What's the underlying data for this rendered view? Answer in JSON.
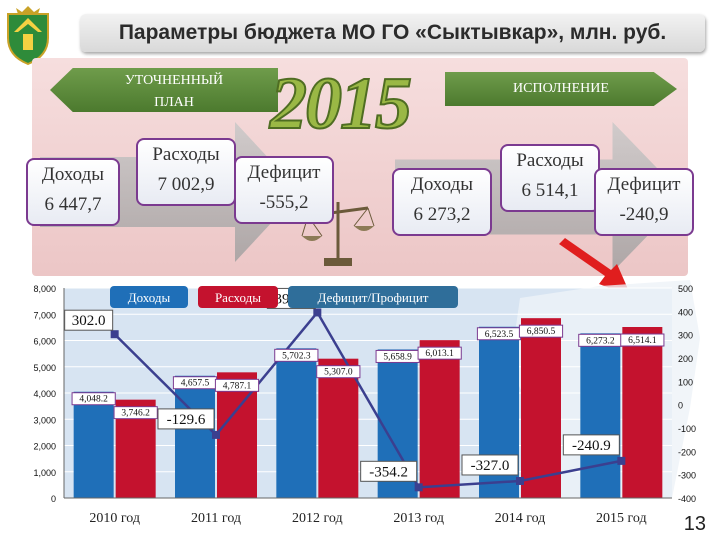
{
  "title": "Параметры бюджета МО ГО «Сыктывкар», млн. руб.",
  "bands": {
    "plan": [
      "УТОЧНЕННЫЙ",
      "ПЛАН"
    ],
    "execution": "ИСПОЛНЕНИЕ",
    "year": "2015"
  },
  "boxes": {
    "plan_income_label": "Доходы",
    "plan_income_value": "6 447,7",
    "plan_expense_label": "Расходы",
    "plan_expense_value": "7 002,9",
    "plan_deficit_label": "Дефицит",
    "plan_deficit_value": "-555,2",
    "exec_income_label": "Доходы",
    "exec_income_value": "6 273,2",
    "exec_expense_label": "Расходы",
    "exec_expense_value": "6 514,1",
    "exec_deficit_label": "Дефицит",
    "exec_deficit_value": "-240,9"
  },
  "page_number": "13",
  "colors": {
    "income": "#1f6fb8",
    "expense": "#c4122e",
    "balance_line": "#3b3f8f",
    "band": "#5a8a36",
    "box_border": "#7b3a90"
  },
  "chart_data": {
    "type": "bar",
    "categories": [
      "2010 год",
      "2011 год",
      "2012 год",
      "2013 год",
      "2014 год",
      "2015 год"
    ],
    "series": [
      {
        "name": "Доходы",
        "values": [
          4048.2,
          4657.5,
          5702.3,
          5658.9,
          6523.5,
          6273.2
        ],
        "labels": [
          "4,048.2",
          "4,657.5",
          "5,702.3",
          "5,658.9",
          "6,523.5",
          "6,273.2"
        ]
      },
      {
        "name": "Расходы",
        "values": [
          3746.2,
          4787.1,
          5307.0,
          6013.1,
          6850.5,
          6514.1
        ],
        "labels": [
          "3,746.2",
          "4,787.1",
          "5,307.0",
          "6,013.1",
          "6,850.5",
          "6,514.1"
        ]
      },
      {
        "name": "Дефицит/Профицит",
        "type": "line",
        "axis": "right",
        "values": [
          302.0,
          -129.6,
          395.3,
          -354.2,
          -327.0,
          -240.9
        ],
        "labels": [
          "302.0",
          "-129.6",
          "395.3",
          "-354.2",
          "-327.0",
          "-240.9"
        ]
      }
    ],
    "y_left": {
      "lim": [
        0,
        8000
      ],
      "ticks": [
        "0",
        "1,000",
        "2,000",
        "3,000",
        "4,000",
        "5,000",
        "6,000",
        "7,000",
        "8,000"
      ]
    },
    "y_right": {
      "lim": [
        -400,
        500
      ],
      "ticks": [
        "-400",
        "-300",
        "-200",
        "-100",
        "0",
        "100",
        "200",
        "300",
        "400",
        "500"
      ]
    },
    "legend": [
      "Доходы",
      "Расходы",
      "Дефицит/Профицит"
    ]
  }
}
